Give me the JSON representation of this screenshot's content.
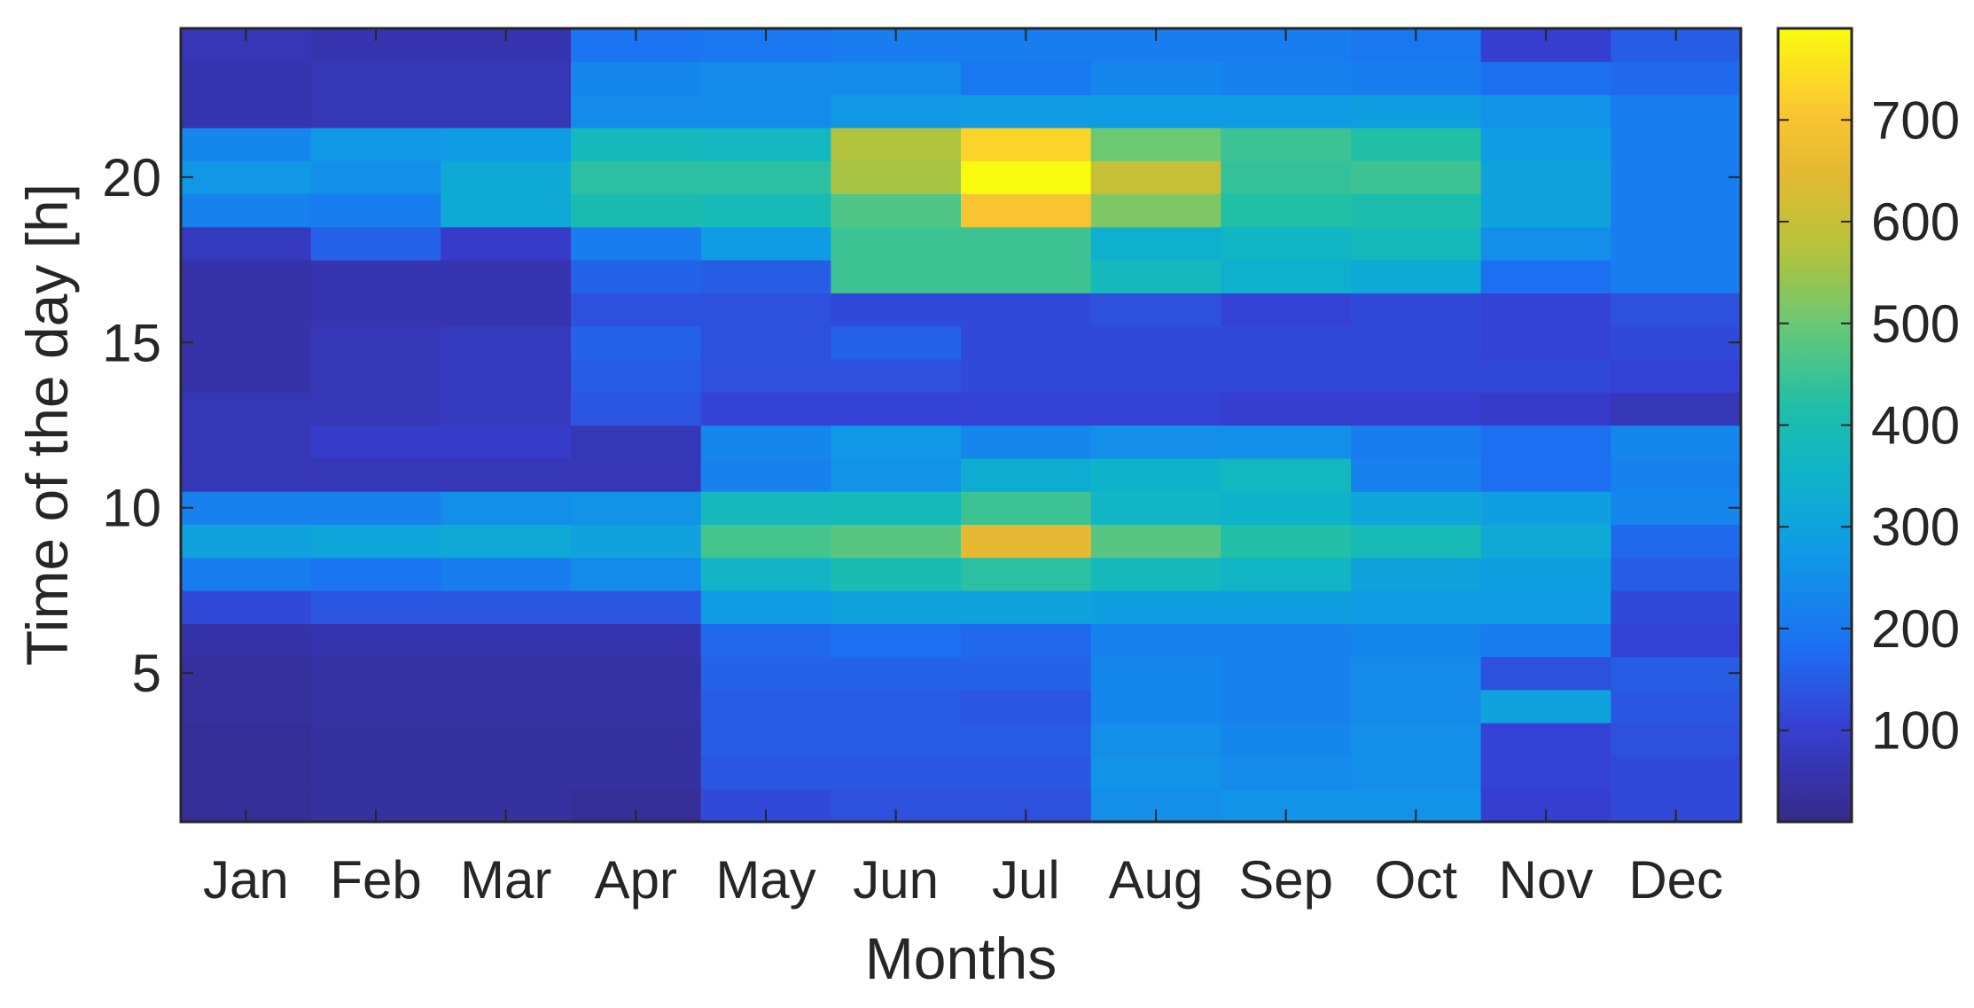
{
  "chart_data": {
    "type": "heatmap",
    "title": "",
    "xlabel": "Months",
    "ylabel": "Time of the day [h]",
    "categories": [
      "Jan",
      "Feb",
      "Mar",
      "Apr",
      "May",
      "Jun",
      "Jul",
      "Aug",
      "Sep",
      "Oct",
      "Nov",
      "Dec"
    ],
    "hours": [
      1,
      2,
      3,
      4,
      5,
      6,
      7,
      8,
      9,
      10,
      11,
      12,
      13,
      14,
      15,
      16,
      17,
      18,
      19,
      20,
      21,
      22,
      23,
      24
    ],
    "yticks": [
      5,
      10,
      15,
      20
    ],
    "ylim": [
      0.5,
      24.5
    ],
    "colorbar": {
      "range": [
        10,
        790
      ],
      "ticks": [
        100,
        200,
        300,
        400,
        500,
        600,
        700
      ]
    },
    "colormap": "parula",
    "grid": false,
    "values": [
      [
        30,
        40,
        40,
        30,
        120,
        130,
        130,
        250,
        260,
        260,
        100,
        120
      ],
      [
        30,
        40,
        40,
        40,
        140,
        140,
        140,
        260,
        240,
        250,
        110,
        120
      ],
      [
        30,
        40,
        40,
        40,
        150,
        150,
        150,
        250,
        230,
        250,
        110,
        130
      ],
      [
        35,
        45,
        45,
        45,
        150,
        150,
        140,
        230,
        220,
        240,
        300,
        140
      ],
      [
        35,
        45,
        45,
        45,
        160,
        160,
        160,
        230,
        220,
        240,
        130,
        150
      ],
      [
        50,
        60,
        60,
        60,
        170,
        180,
        170,
        220,
        220,
        230,
        210,
        110
      ],
      [
        120,
        140,
        140,
        140,
        280,
        300,
        300,
        290,
        290,
        280,
        280,
        120
      ],
      [
        210,
        190,
        210,
        240,
        360,
        400,
        430,
        380,
        360,
        300,
        290,
        150
      ],
      [
        300,
        310,
        320,
        300,
        460,
        480,
        650,
        480,
        420,
        390,
        320,
        170
      ],
      [
        220,
        220,
        250,
        260,
        380,
        380,
        450,
        360,
        350,
        310,
        290,
        230
      ],
      [
        70,
        70,
        70,
        70,
        220,
        260,
        330,
        350,
        370,
        220,
        180,
        220
      ],
      [
        70,
        90,
        90,
        70,
        230,
        270,
        230,
        250,
        250,
        210,
        180,
        230
      ],
      [
        70,
        70,
        80,
        140,
        110,
        110,
        110,
        110,
        100,
        100,
        90,
        70
      ],
      [
        50,
        70,
        80,
        150,
        130,
        130,
        120,
        120,
        120,
        120,
        120,
        110
      ],
      [
        50,
        70,
        80,
        160,
        130,
        160,
        120,
        120,
        120,
        120,
        110,
        120
      ],
      [
        50,
        60,
        60,
        130,
        130,
        120,
        120,
        130,
        110,
        120,
        110,
        130
      ],
      [
        50,
        60,
        60,
        160,
        150,
        450,
        450,
        380,
        340,
        320,
        180,
        210
      ],
      [
        80,
        160,
        90,
        210,
        280,
        450,
        450,
        340,
        360,
        380,
        250,
        210
      ],
      [
        220,
        210,
        320,
        400,
        390,
        470,
        700,
        520,
        420,
        410,
        300,
        210
      ],
      [
        270,
        250,
        320,
        430,
        430,
        560,
        790,
        600,
        440,
        450,
        300,
        210
      ],
      [
        230,
        270,
        280,
        380,
        370,
        570,
        730,
        500,
        450,
        420,
        280,
        210
      ],
      [
        60,
        70,
        70,
        240,
        240,
        270,
        280,
        280,
        280,
        290,
        260,
        210
      ],
      [
        60,
        70,
        70,
        230,
        240,
        240,
        200,
        230,
        220,
        210,
        180,
        170
      ],
      [
        70,
        60,
        60,
        190,
        200,
        210,
        210,
        210,
        210,
        200,
        100,
        150
      ]
    ]
  }
}
